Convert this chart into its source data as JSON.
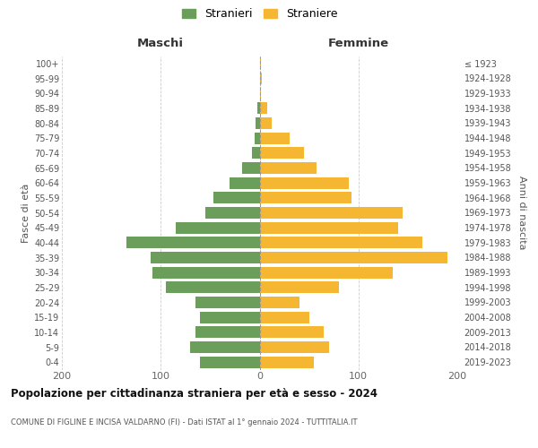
{
  "age_groups": [
    "0-4",
    "5-9",
    "10-14",
    "15-19",
    "20-24",
    "25-29",
    "30-34",
    "35-39",
    "40-44",
    "45-49",
    "50-54",
    "55-59",
    "60-64",
    "65-69",
    "70-74",
    "75-79",
    "80-84",
    "85-89",
    "90-94",
    "95-99",
    "100+"
  ],
  "birth_years": [
    "2019-2023",
    "2014-2018",
    "2009-2013",
    "2004-2008",
    "1999-2003",
    "1994-1998",
    "1989-1993",
    "1984-1988",
    "1979-1983",
    "1974-1978",
    "1969-1973",
    "1964-1968",
    "1959-1963",
    "1954-1958",
    "1949-1953",
    "1944-1948",
    "1939-1943",
    "1934-1938",
    "1929-1933",
    "1924-1928",
    "≤ 1923"
  ],
  "maschi": [
    60,
    70,
    65,
    60,
    65,
    95,
    108,
    110,
    135,
    85,
    55,
    47,
    30,
    18,
    8,
    5,
    4,
    2,
    0,
    0,
    0
  ],
  "femmine": [
    55,
    70,
    65,
    50,
    40,
    80,
    135,
    190,
    165,
    140,
    145,
    93,
    90,
    58,
    45,
    30,
    12,
    8,
    1,
    2,
    1
  ],
  "color_maschi": "#6a9e5a",
  "color_femmine": "#f5b731",
  "title": "Popolazione per cittadinanza straniera per età e sesso - 2024",
  "subtitle": "COMUNE DI FIGLINE E INCISA VALDARNO (FI) - Dati ISTAT al 1° gennaio 2024 - TUTTITALIA.IT",
  "header_left": "Maschi",
  "header_right": "Femmine",
  "ylabel_left": "Fasce di età",
  "ylabel_right": "Anni di nascita",
  "legend_maschi": "Stranieri",
  "legend_femmine": "Straniere",
  "xlim": 200,
  "background_color": "#ffffff",
  "grid_color": "#cccccc"
}
